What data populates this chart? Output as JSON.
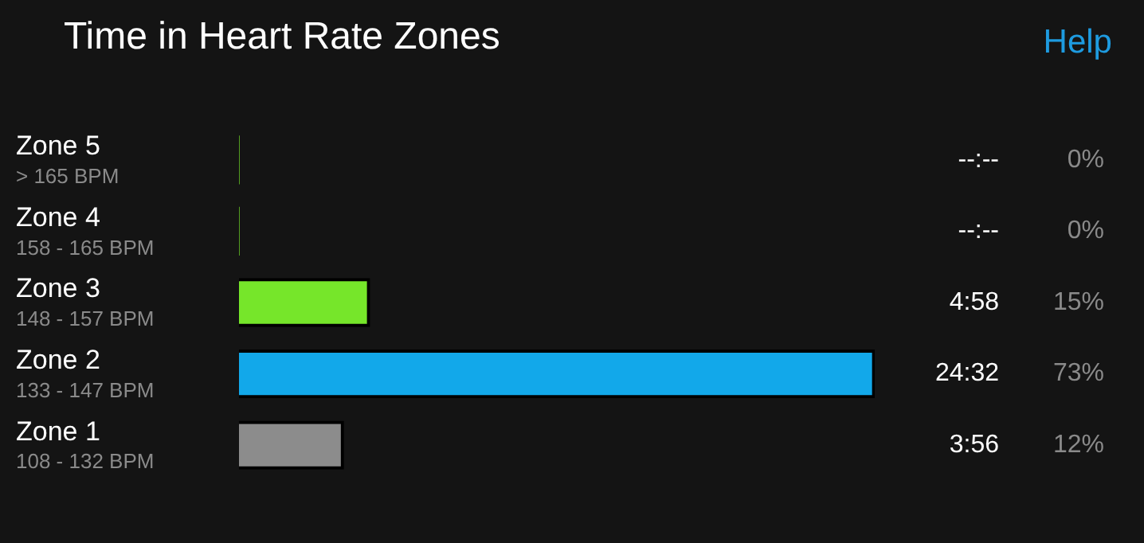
{
  "chart_data": {
    "type": "bar",
    "orientation": "horizontal",
    "title": "Time in Heart Rate Zones",
    "categories": [
      "Zone 5\n> 165 BPM",
      "Zone 4\n158 - 165 BPM",
      "Zone 3\n148 - 157 BPM",
      "Zone 2\n133 - 147 BPM",
      "Zone 1\n108 - 132 BPM"
    ],
    "values": [
      0,
      0,
      15,
      73,
      12
    ],
    "colors": [
      "#76e62a",
      "#76e62a",
      "#76e62a",
      "#12a8ea",
      "#8c8c8c"
    ],
    "value_labels": [
      "0%",
      "0%",
      "15%",
      "73%",
      "12%"
    ],
    "annotations": [
      "Help",
      "--:--",
      "--:--",
      "4:58",
      "24:32",
      "3:56"
    ]
  }
}
